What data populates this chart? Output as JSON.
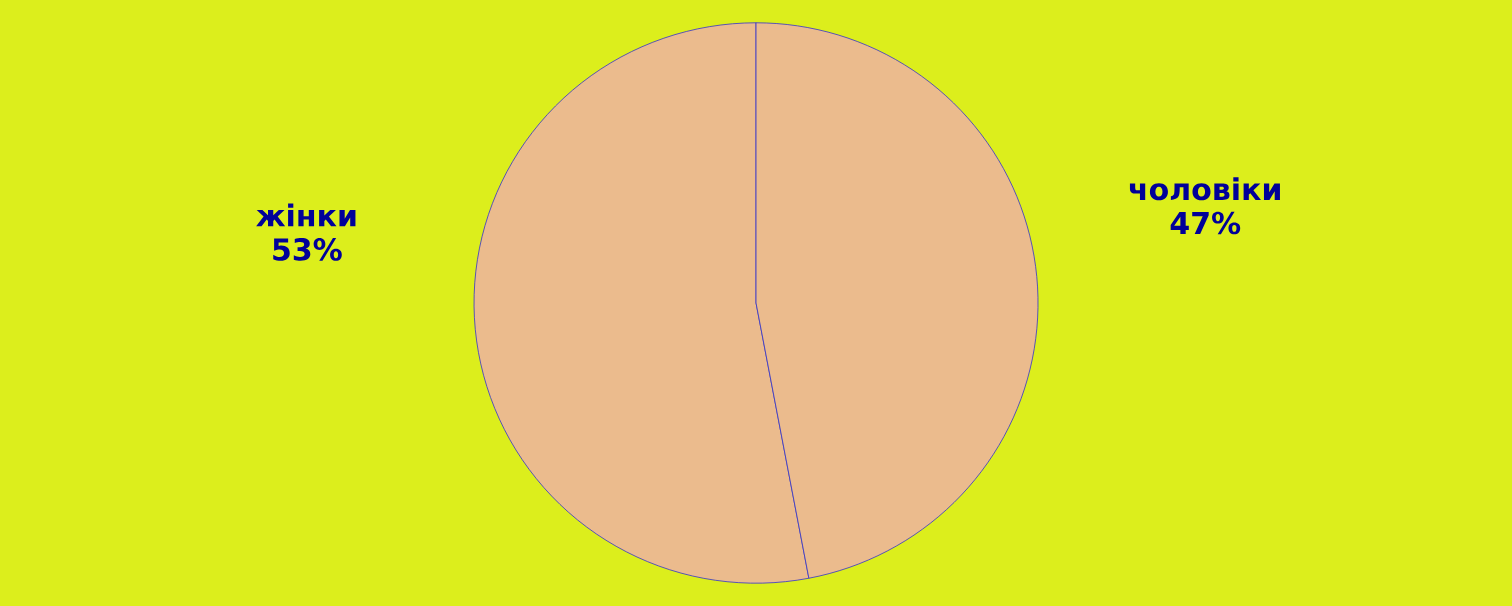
{
  "chart_data": {
    "type": "pie",
    "categories": [
      "жінки",
      "чоловіки"
    ],
    "values": [
      53,
      47
    ],
    "value_labels": [
      "53%",
      "47%"
    ],
    "colors": [
      "#ebbb8d",
      "#ebbb8d"
    ]
  }
}
